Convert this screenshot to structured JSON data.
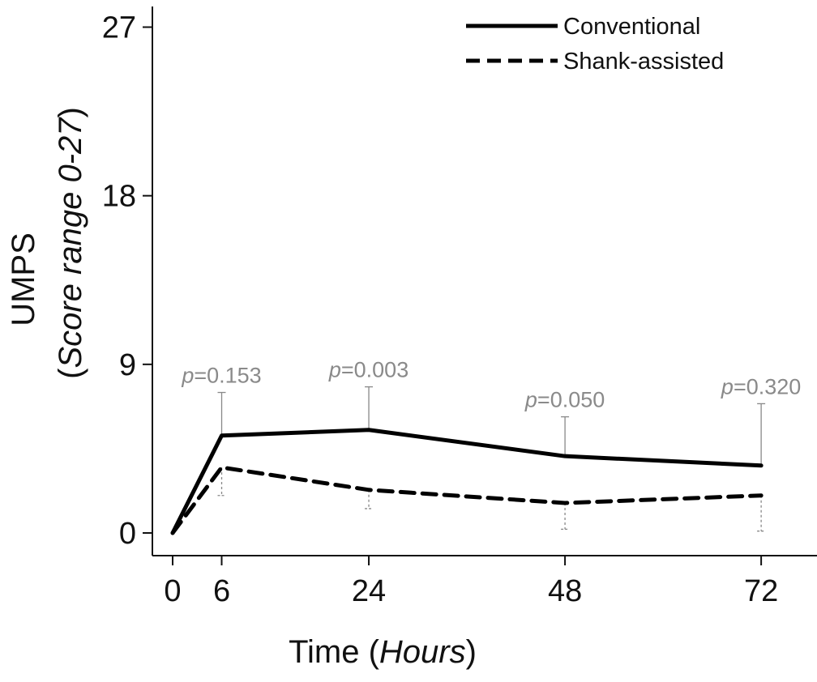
{
  "chart_data": {
    "type": "line",
    "xlabel": "Time",
    "xlabel_italic": "Hours",
    "ylabel": "UMPS",
    "ylabel_italic": "Score range 0-27",
    "x": [
      0,
      6,
      24,
      48,
      72
    ],
    "x_ticks": [
      "0",
      "6",
      "24",
      "48",
      "72"
    ],
    "y_ticks": [
      "0",
      "9",
      "18",
      "27"
    ],
    "xlim": [
      -2,
      77
    ],
    "ylim": [
      -1.3,
      27.3
    ],
    "grid": false,
    "legend_position": "top-right",
    "series": [
      {
        "name": "Conventional",
        "style": "solid",
        "values": [
          0,
          5.2,
          5.5,
          4.1,
          3.6
        ],
        "error_upper": [
          null,
          7.5,
          7.8,
          6.2,
          6.9
        ]
      },
      {
        "name": "Shank-assisted",
        "style": "dashed",
        "values": [
          0,
          3.5,
          2.3,
          1.6,
          2.0
        ],
        "error_lower": [
          null,
          2.0,
          1.3,
          0.2,
          0.1
        ]
      }
    ],
    "annotations": [
      {
        "x": 6,
        "prefix": "p",
        "text": "=0.153"
      },
      {
        "x": 24,
        "prefix": "p",
        "text": "=0.003"
      },
      {
        "x": 48,
        "prefix": "p",
        "text": "=0.050"
      },
      {
        "x": 72,
        "prefix": "p",
        "text": "=0.320"
      }
    ],
    "colors": {
      "line": "#000000",
      "error": "#888888",
      "annotation": "#8a8a8a"
    }
  }
}
